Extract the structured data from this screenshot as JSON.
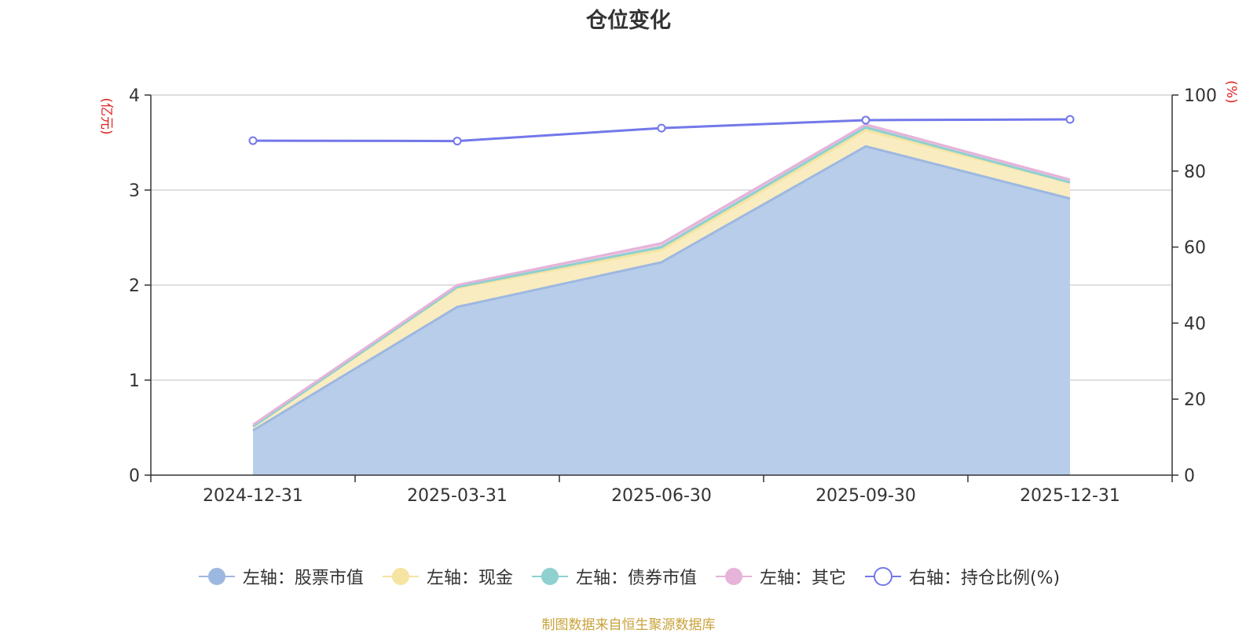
{
  "chart_data": {
    "type": "area",
    "title": "仓位变化",
    "categories": [
      "2024-12-31",
      "2025-03-31",
      "2025-06-30",
      "2025-09-30",
      "2025-12-31"
    ],
    "left_axis": {
      "label": "(亿元)",
      "ylim": [
        0,
        4
      ],
      "ticks": [
        "0",
        "1",
        "2",
        "3",
        "4"
      ]
    },
    "right_axis": {
      "label": "(%)",
      "ylim": [
        0,
        100
      ],
      "ticks": [
        "0",
        "20",
        "40",
        "60",
        "80",
        "100"
      ]
    },
    "series": [
      {
        "name": "左轴：股票市值",
        "axis": "left",
        "stack": true,
        "values": [
          0.47,
          1.77,
          2.24,
          3.46,
          2.91
        ],
        "color": "#9db8e0",
        "fill": "#b8cdea"
      },
      {
        "name": "左轴：现金",
        "axis": "left",
        "stack": true,
        "values": [
          0.04,
          0.2,
          0.13,
          0.17,
          0.17
        ],
        "color": "#f5e4a2",
        "fill": "#f9ecc0"
      },
      {
        "name": "左轴：债券市值",
        "axis": "left",
        "stack": true,
        "values": [
          0.0,
          0.01,
          0.03,
          0.03,
          0.0
        ],
        "color": "#8fd0d0",
        "fill": "#b2dfdf"
      },
      {
        "name": "左轴：其它",
        "axis": "left",
        "stack": true,
        "values": [
          0.02,
          0.02,
          0.04,
          0.03,
          0.03
        ],
        "color": "#e6b3d9",
        "fill": "#efc9e4"
      },
      {
        "name": "右轴：持仓比例(%)",
        "axis": "right",
        "type": "line",
        "values": [
          88.0,
          87.9,
          91.3,
          93.4,
          93.6
        ],
        "color": "#7378ea"
      }
    ],
    "grid": true,
    "legend_position": "bottom"
  },
  "source_note": "制图数据来自恒生聚源数据库"
}
